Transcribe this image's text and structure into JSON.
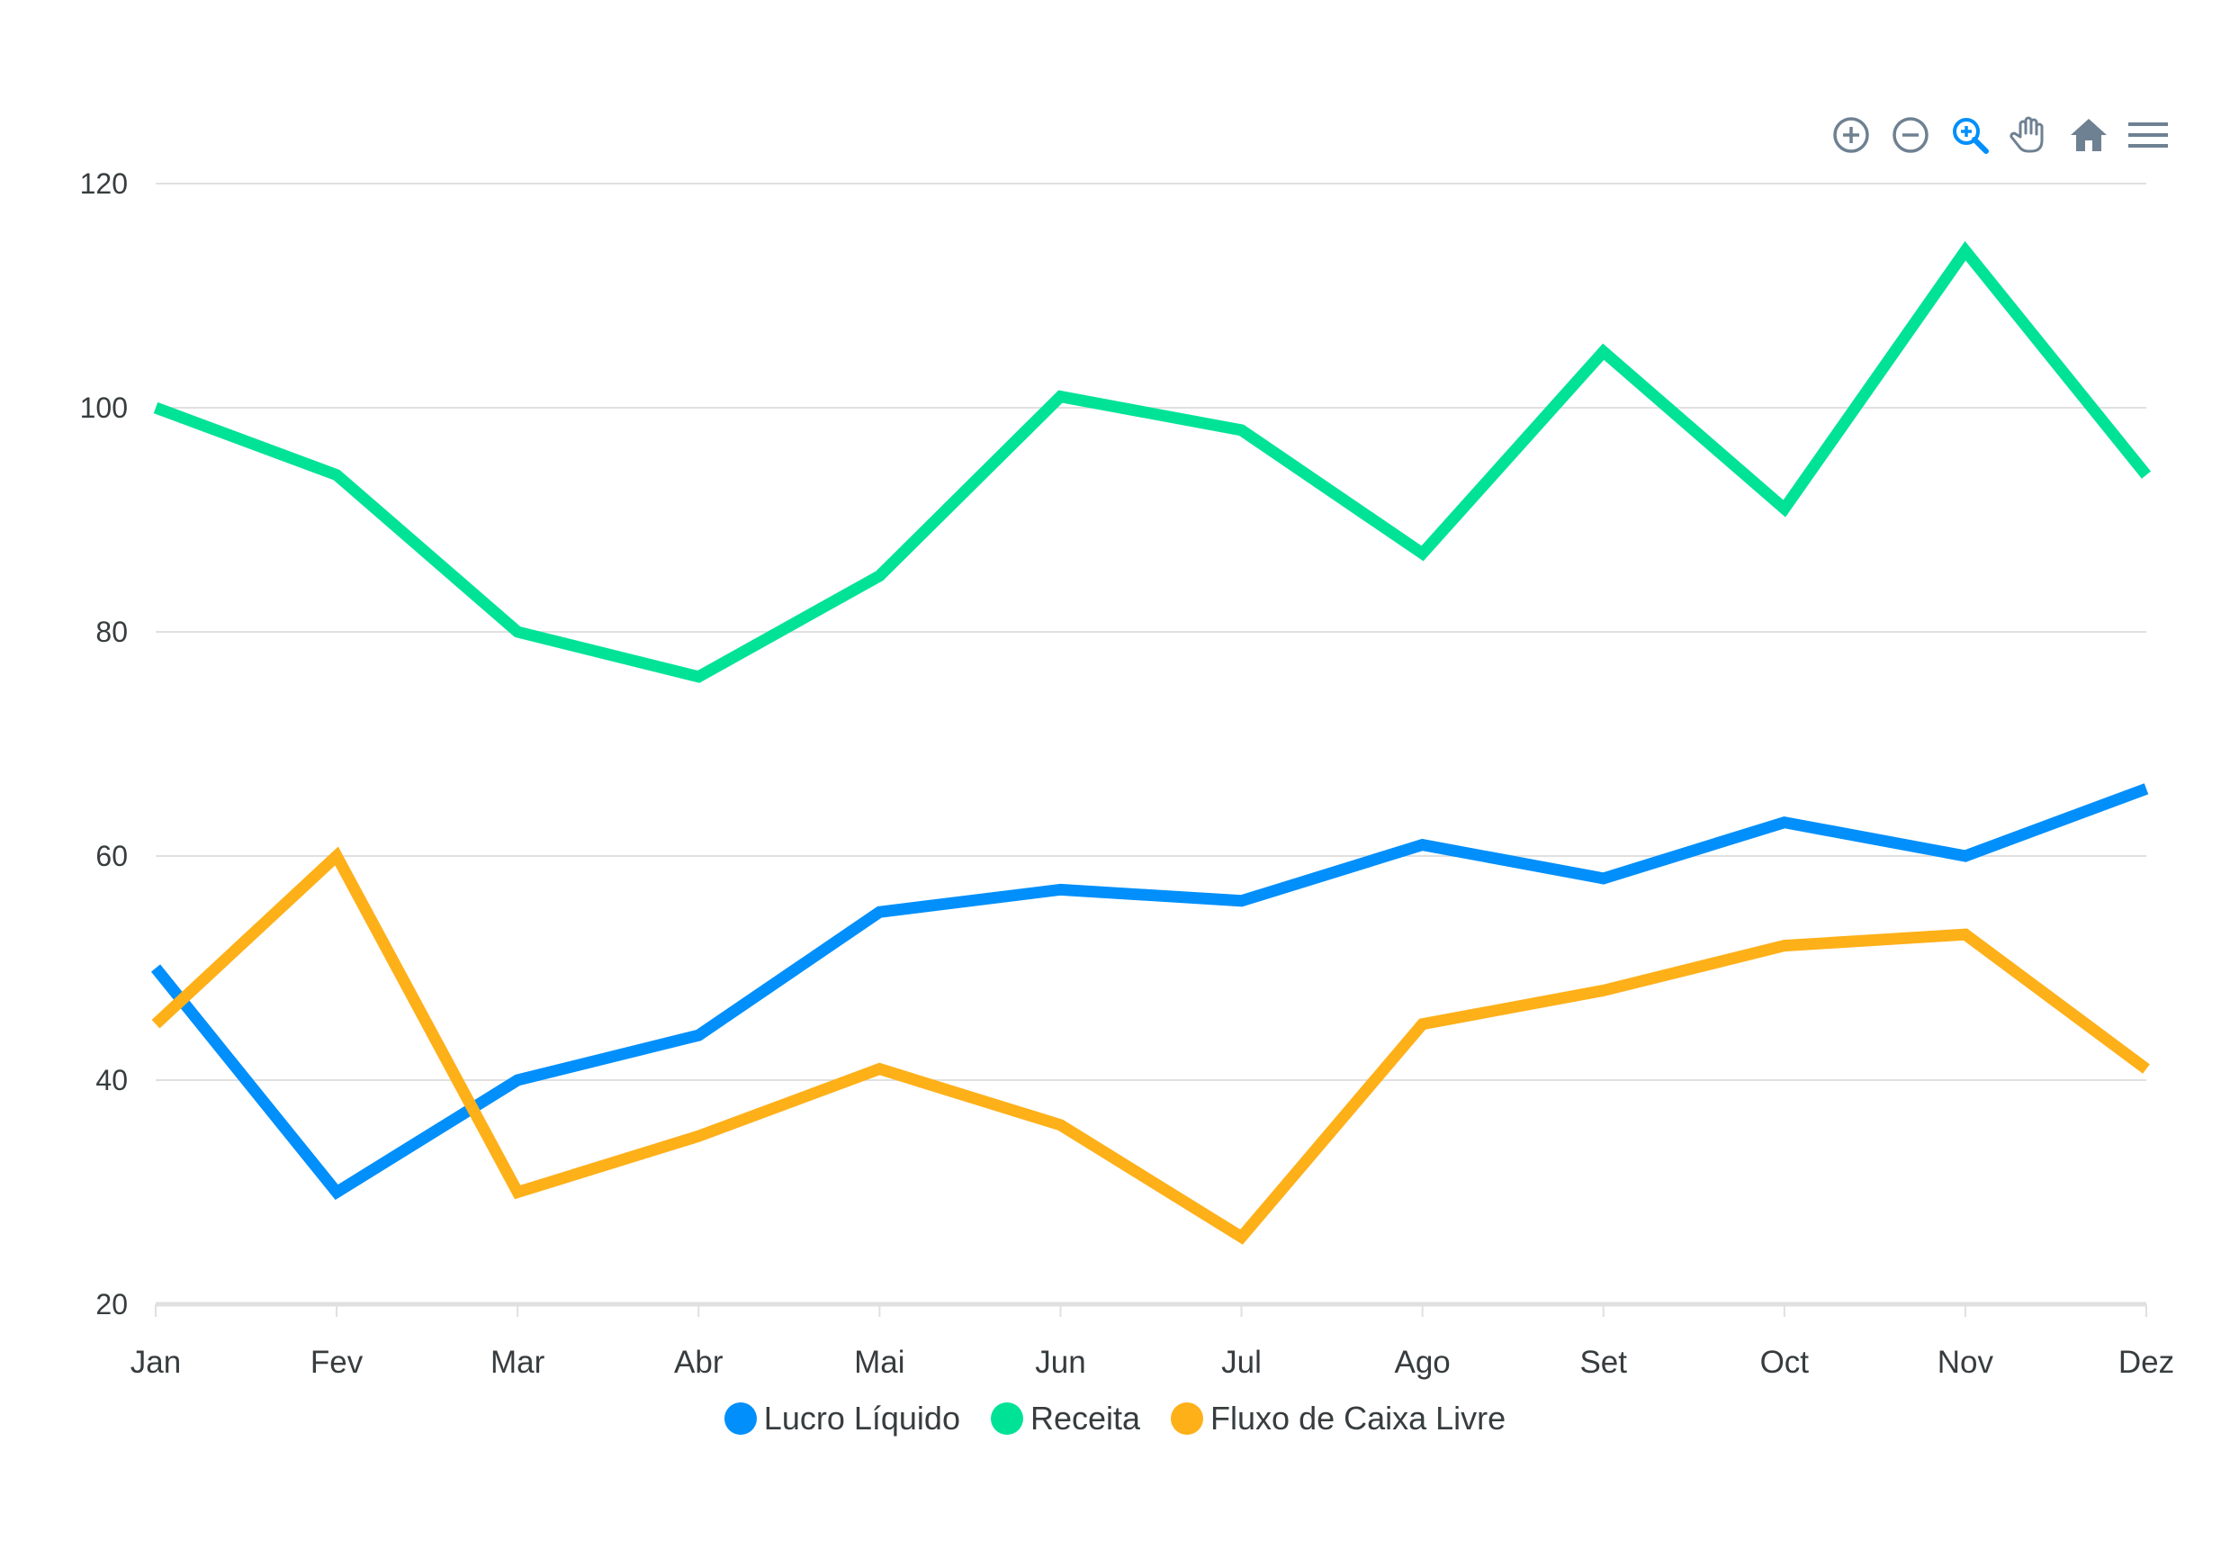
{
  "toolbar": {
    "tools": [
      {
        "name": "zoom-in-icon",
        "active": false
      },
      {
        "name": "zoom-out-icon",
        "active": false
      },
      {
        "name": "selection-zoom-icon",
        "active": true
      },
      {
        "name": "pan-hand-icon",
        "active": false
      },
      {
        "name": "reset-home-icon",
        "active": false
      },
      {
        "name": "menu-icon",
        "active": false
      }
    ],
    "icon_color": "#6e8192",
    "active_color": "#008ffb"
  },
  "chart_data": {
    "type": "line",
    "categories": [
      "Jan",
      "Fev",
      "Mar",
      "Abr",
      "Mai",
      "Jun",
      "Jul",
      "Ago",
      "Set",
      "Oct",
      "Nov",
      "Dez"
    ],
    "ylim": [
      20,
      120
    ],
    "yticks": [
      20,
      40,
      60,
      80,
      100,
      120
    ],
    "grid": true,
    "legend_position": "bottom",
    "series": [
      {
        "name": "Lucro Líquido",
        "color": "#008ffb",
        "values": [
          50,
          30,
          40,
          44,
          55,
          57,
          56,
          61,
          58,
          63,
          60,
          66
        ]
      },
      {
        "name": "Receita",
        "color": "#00e396",
        "values": [
          100,
          94,
          80,
          76,
          85,
          101,
          98,
          87,
          105,
          91,
          114,
          94
        ]
      },
      {
        "name": "Fluxo de Caixa Livre",
        "color": "#feb019",
        "values": [
          45,
          60,
          30,
          35,
          41,
          36,
          26,
          45,
          48,
          52,
          53,
          41
        ]
      }
    ]
  }
}
